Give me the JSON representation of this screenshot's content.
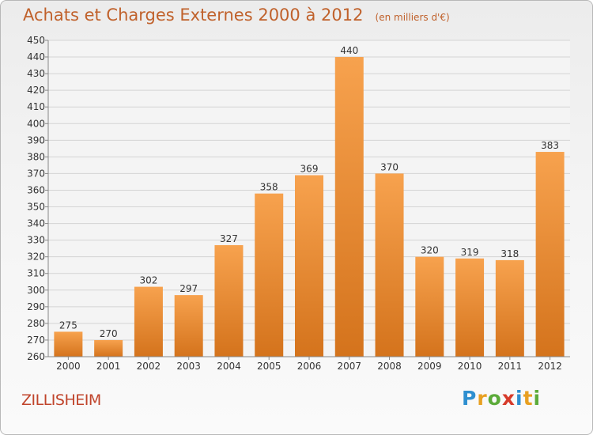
{
  "header": {
    "title": "Achats et Charges Externes 2000 à 2012",
    "unit": "(en milliers d'€)"
  },
  "footer": {
    "town": "ZILLISHEIM",
    "logo_letters": [
      {
        "ch": "P",
        "color": "#2e8fd0"
      },
      {
        "ch": "r",
        "color": "#e8a022"
      },
      {
        "ch": "o",
        "color": "#5cab3a"
      },
      {
        "ch": "x",
        "color": "#d63a2a"
      },
      {
        "ch": "i",
        "color": "#2e8fd0"
      },
      {
        "ch": "t",
        "color": "#e8a022"
      },
      {
        "ch": "i",
        "color": "#5cab3a"
      }
    ]
  },
  "chart_data": {
    "type": "bar",
    "title": "Achats et Charges Externes 2000 à 2012",
    "categories": [
      "2000",
      "2001",
      "2002",
      "2003",
      "2004",
      "2005",
      "2006",
      "2007",
      "2008",
      "2009",
      "2010",
      "2011",
      "2012"
    ],
    "values": [
      275,
      270,
      302,
      297,
      327,
      358,
      369,
      440,
      370,
      320,
      319,
      318,
      383
    ],
    "ylim": [
      260,
      450
    ],
    "ytick_step": 10,
    "grid": true,
    "bar_color_top": "#f7a24e",
    "bar_color_bottom": "#d4731c"
  }
}
